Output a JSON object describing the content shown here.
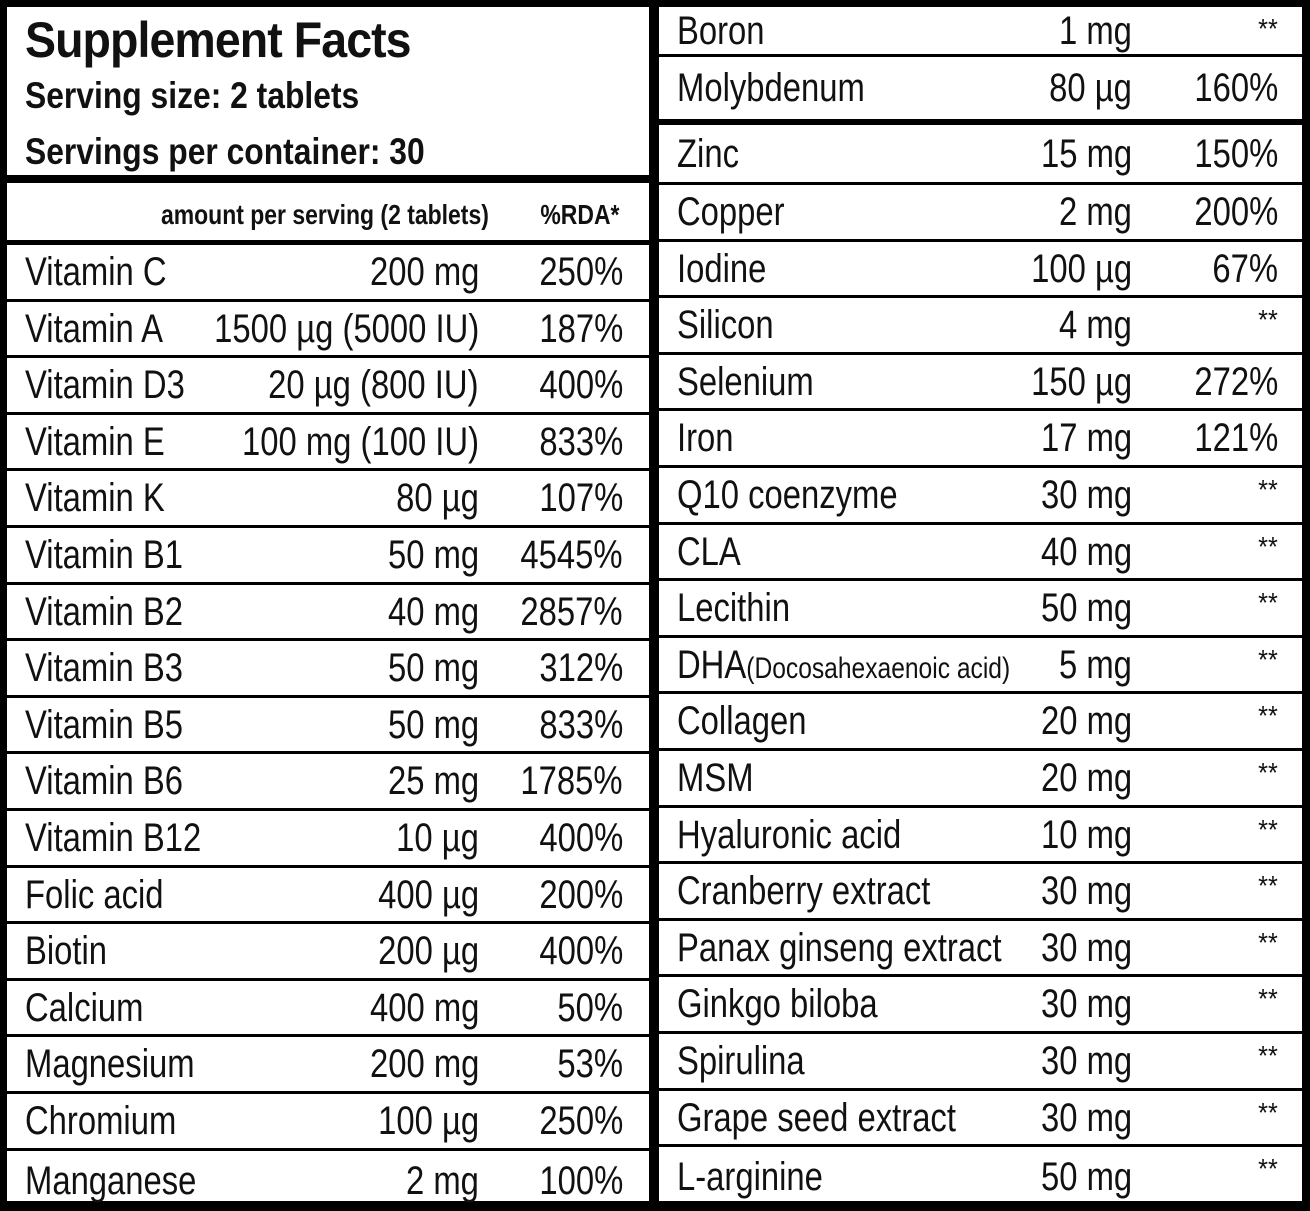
{
  "header": {
    "title": "Supplement Facts",
    "serving_size": "Serving size: 2 tablets",
    "servings_per_container": "Servings per container: 30"
  },
  "columns": {
    "amount": "amount per serving (2 tablets)",
    "rda": "%RDA*"
  },
  "left_rows": [
    {
      "name": "Vitamin C",
      "amount": "200 mg",
      "rda": "250%"
    },
    {
      "name": "Vitamin A",
      "amount": "1500 µg (5000 IU)",
      "rda": "187%"
    },
    {
      "name": "Vitamin D3",
      "amount": "20 µg (800 IU)",
      "rda": "400%"
    },
    {
      "name": "Vitamin E",
      "amount": "100 mg (100 IU)",
      "rda": "833%"
    },
    {
      "name": "Vitamin K",
      "amount": "80 µg",
      "rda": "107%"
    },
    {
      "name": "Vitamin B1",
      "amount": "50 mg",
      "rda": "4545%"
    },
    {
      "name": "Vitamin B2",
      "amount": "40 mg",
      "rda": "2857%"
    },
    {
      "name": "Vitamin B3",
      "amount": "50 mg",
      "rda": "312%"
    },
    {
      "name": "Vitamin B5",
      "amount": "50 mg",
      "rda": "833%"
    },
    {
      "name": "Vitamin B6",
      "amount": "25 mg",
      "rda": "1785%"
    },
    {
      "name": "Vitamin B12",
      "amount": "10 µg",
      "rda": "400%"
    },
    {
      "name": "Folic acid",
      "amount": "400 µg",
      "rda": "200%"
    },
    {
      "name": "Biotin",
      "amount": "200 µg",
      "rda": "400%"
    },
    {
      "name": "Calcium",
      "amount": "400 mg",
      "rda": "50%"
    },
    {
      "name": "Magnesium",
      "amount": "200 mg",
      "rda": "53%"
    },
    {
      "name": "Chromium",
      "amount": "100 µg",
      "rda": "250%"
    },
    {
      "name": "Manganese",
      "amount": "2 mg",
      "rda": "100%"
    }
  ],
  "right_rows": [
    {
      "name": "Boron",
      "amount": "1 mg",
      "rda": "**"
    },
    {
      "name": "Molybdenum",
      "amount": "80 µg",
      "rda": "160%"
    },
    {
      "name": "Zinc",
      "amount": "15 mg",
      "rda": "150%"
    },
    {
      "name": "Copper",
      "amount": "2 mg",
      "rda": "200%"
    },
    {
      "name": "Iodine",
      "amount": "100 µg",
      "rda": "67%"
    },
    {
      "name": "Silicon",
      "amount": "4 mg",
      "rda": "**"
    },
    {
      "name": "Selenium",
      "amount": "150 µg",
      "rda": "272%"
    },
    {
      "name": "Iron",
      "amount": "17 mg",
      "rda": "121%"
    },
    {
      "name": "Q10 coenzyme",
      "amount": "30 mg",
      "rda": "**"
    },
    {
      "name": "CLA",
      "amount": "40 mg",
      "rda": "**"
    },
    {
      "name": "Lecithin",
      "amount": "50 mg",
      "rda": "**"
    },
    {
      "name": "DHA",
      "name_note": "(Docosahexaenoic acid)",
      "amount": "5 mg",
      "rda": "**"
    },
    {
      "name": "Collagen",
      "amount": "20 mg",
      "rda": "**"
    },
    {
      "name": "MSM",
      "amount": "20 mg",
      "rda": "**"
    },
    {
      "name": "Hyaluronic acid",
      "amount": "10 mg",
      "rda": "**"
    },
    {
      "name": "Cranberry extract",
      "amount": "30 mg",
      "rda": "**"
    },
    {
      "name": "Panax ginseng extract",
      "amount": "30 mg",
      "rda": "**"
    },
    {
      "name": "Ginkgo biloba",
      "amount": "30 mg",
      "rda": "**"
    },
    {
      "name": "Spirulina",
      "amount": "30 mg",
      "rda": "**"
    },
    {
      "name": "Grape seed extract",
      "amount": "30 mg",
      "rda": "**"
    },
    {
      "name": "L-arginine",
      "amount": "50 mg",
      "rda": "**"
    }
  ]
}
